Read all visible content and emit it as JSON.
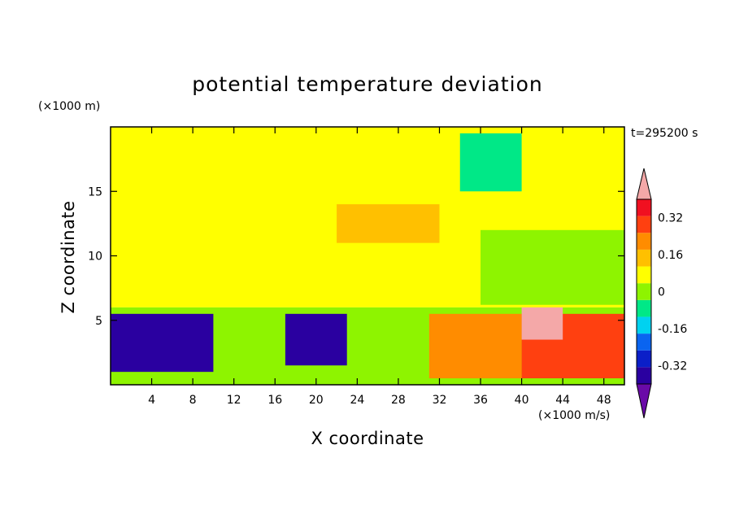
{
  "chart_data": {
    "type": "heatmap",
    "title": "potential temperature deviation",
    "xlabel": "X coordinate",
    "ylabel": "Z coordinate",
    "x_unit": "(×1000 m/s)",
    "y_unit": "(×1000 m)",
    "time_label": "t=295200 s",
    "xlim": [
      0,
      50
    ],
    "ylim": [
      0,
      20
    ],
    "x_ticks": [
      4,
      8,
      12,
      16,
      20,
      24,
      28,
      32,
      36,
      40,
      44,
      48
    ],
    "y_ticks": [
      5,
      10,
      15
    ],
    "colorbar": {
      "levels": [
        -0.48,
        -0.4,
        -0.32,
        -0.24,
        -0.16,
        -0.08,
        0,
        0.08,
        0.16,
        0.24,
        0.32,
        0.4,
        0.48
      ],
      "colors": [
        "#6a0aa8",
        "#2a00a0",
        "#0b1fc8",
        "#0a64f0",
        "#00d2f0",
        "#00e887",
        "#8ef400",
        "#ffff00",
        "#ffc000",
        "#ff8c00",
        "#ff4010",
        "#f01020",
        "#f4a8a8"
      ],
      "tick_labels": [
        "0.32",
        "0.16",
        "0",
        "-0.16",
        "-0.32"
      ],
      "tick_values": [
        0.32,
        0.16,
        0,
        -0.16,
        -0.32
      ]
    },
    "field_regions": [
      {
        "x": [
          0,
          50
        ],
        "z": [
          6,
          20
        ],
        "level": 0.04
      },
      {
        "x": [
          0,
          9
        ],
        "z": [
          6.1,
          9
        ],
        "level": 0.08
      },
      {
        "x": [
          10,
          20
        ],
        "z": [
          13,
          18
        ],
        "level": 0.08
      },
      {
        "x": [
          22,
          32
        ],
        "z": [
          11,
          14
        ],
        "level": 0.12
      },
      {
        "x": [
          34,
          40
        ],
        "z": [
          15,
          19.5
        ],
        "level": -0.1
      },
      {
        "x": [
          36,
          50
        ],
        "z": [
          6.2,
          12
        ],
        "level": 0.0
      },
      {
        "x": [
          0,
          50
        ],
        "z": [
          0,
          6
        ],
        "level": -0.04
      },
      {
        "x": [
          0,
          10
        ],
        "z": [
          1,
          5.5
        ],
        "level": -0.4
      },
      {
        "x": [
          17,
          23
        ],
        "z": [
          1.5,
          5.5
        ],
        "level": -0.4
      },
      {
        "x": [
          31,
          40
        ],
        "z": [
          0.5,
          5.5
        ],
        "level": 0.24
      },
      {
        "x": [
          40,
          50
        ],
        "z": [
          0.5,
          5.5
        ],
        "level": 0.28
      },
      {
        "x": [
          40,
          44
        ],
        "z": [
          3.5,
          6
        ],
        "level": 0.48
      }
    ]
  }
}
